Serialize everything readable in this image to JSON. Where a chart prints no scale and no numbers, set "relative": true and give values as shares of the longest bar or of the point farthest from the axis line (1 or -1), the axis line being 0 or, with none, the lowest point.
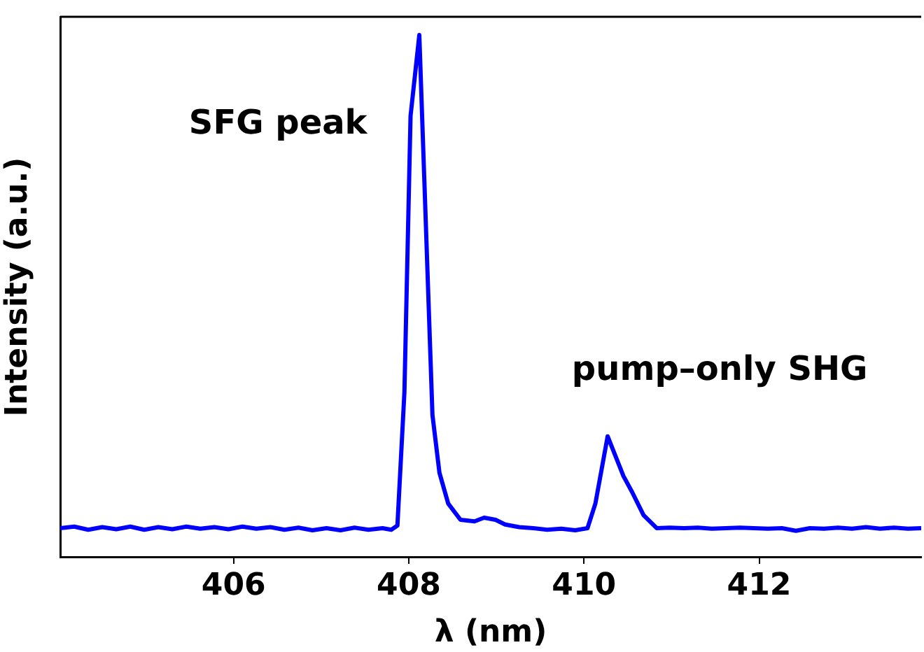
{
  "chart_data": {
    "type": "line",
    "relative": true,
    "xlabel": "λ (nm)",
    "ylabel": "Intensity (a.u.)",
    "xlim": [
      404.02,
      413.85
    ],
    "xticks": [
      406,
      408,
      410,
      412
    ],
    "grid": false,
    "legend": false,
    "marker": "none",
    "line_style": "solid",
    "series": [
      {
        "color": "#0000ff",
        "x": [
          404.02,
          404.18,
          404.34,
          404.5,
          404.66,
          404.82,
          404.98,
          405.14,
          405.3,
          405.46,
          405.62,
          405.78,
          405.94,
          406.1,
          406.26,
          406.42,
          406.58,
          406.74,
          406.9,
          407.06,
          407.22,
          407.38,
          407.54,
          407.7,
          407.8,
          407.87,
          407.95,
          408.02,
          408.12,
          408.27,
          408.35,
          408.45,
          408.59,
          408.75,
          408.86,
          408.99,
          409.1,
          409.26,
          409.42,
          409.58,
          409.74,
          409.9,
          410.04,
          410.13,
          410.27,
          410.45,
          410.55,
          410.68,
          410.83,
          410.98,
          411.14,
          411.3,
          411.46,
          411.62,
          411.78,
          411.94,
          412.1,
          412.26,
          412.42,
          412.58,
          412.74,
          412.9,
          413.06,
          413.22,
          413.38,
          413.54,
          413.7,
          413.85
        ],
        "values": [
          0.055,
          0.058,
          0.052,
          0.057,
          0.053,
          0.058,
          0.052,
          0.057,
          0.053,
          0.058,
          0.054,
          0.057,
          0.053,
          0.058,
          0.054,
          0.057,
          0.052,
          0.056,
          0.051,
          0.055,
          0.051,
          0.056,
          0.052,
          0.055,
          0.052,
          0.06,
          0.316,
          0.845,
          1,
          0.272,
          0.161,
          0.102,
          0.071,
          0.068,
          0.075,
          0.071,
          0.062,
          0.057,
          0.055,
          0.052,
          0.054,
          0.051,
          0.055,
          0.102,
          0.231,
          0.155,
          0.124,
          0.08,
          0.055,
          0.056,
          0.055,
          0.056,
          0.054,
          0.055,
          0.056,
          0.055,
          0.054,
          0.055,
          0.05,
          0.055,
          0.054,
          0.056,
          0.054,
          0.057,
          0.054,
          0.056,
          0.054,
          0.055
        ]
      }
    ],
    "annotations": [
      "SFG peak",
      "pump–only SHG"
    ]
  }
}
